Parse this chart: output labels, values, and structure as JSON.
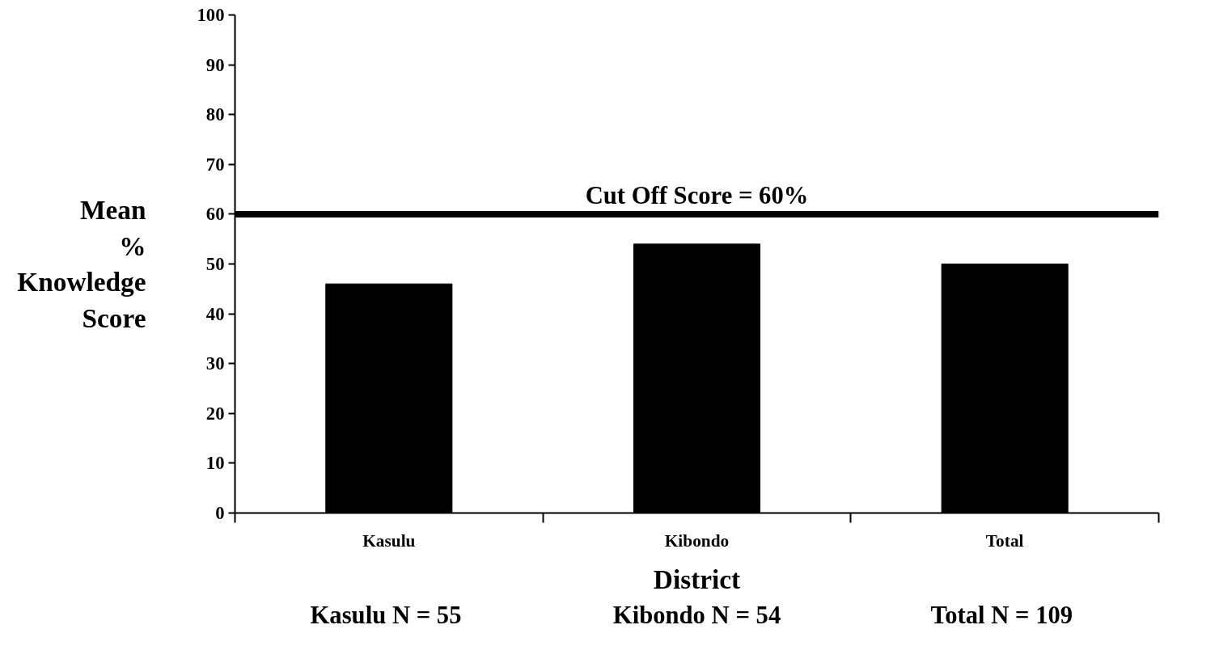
{
  "chart_data": {
    "type": "bar",
    "xlabel": "District",
    "ylabel": "Mean % Knowledge Score",
    "categories": [
      "Kasulu",
      "Kibondo",
      "Total"
    ],
    "values": [
      46,
      54,
      50
    ],
    "color": "#000000",
    "ylim": [
      0,
      100
    ],
    "yticks": [
      0,
      10,
      20,
      30,
      40,
      50,
      60,
      70,
      80,
      90,
      100
    ],
    "grid": false,
    "ref_lines": [
      {
        "axis": "y",
        "value": 60,
        "label": "Cut Off Score = 60%",
        "color": "#000000",
        "line_style": "solid"
      }
    ],
    "annotations": [
      "Kasulu  N = 55",
      "Kibondo N = 54",
      "Total  N = 109"
    ]
  }
}
